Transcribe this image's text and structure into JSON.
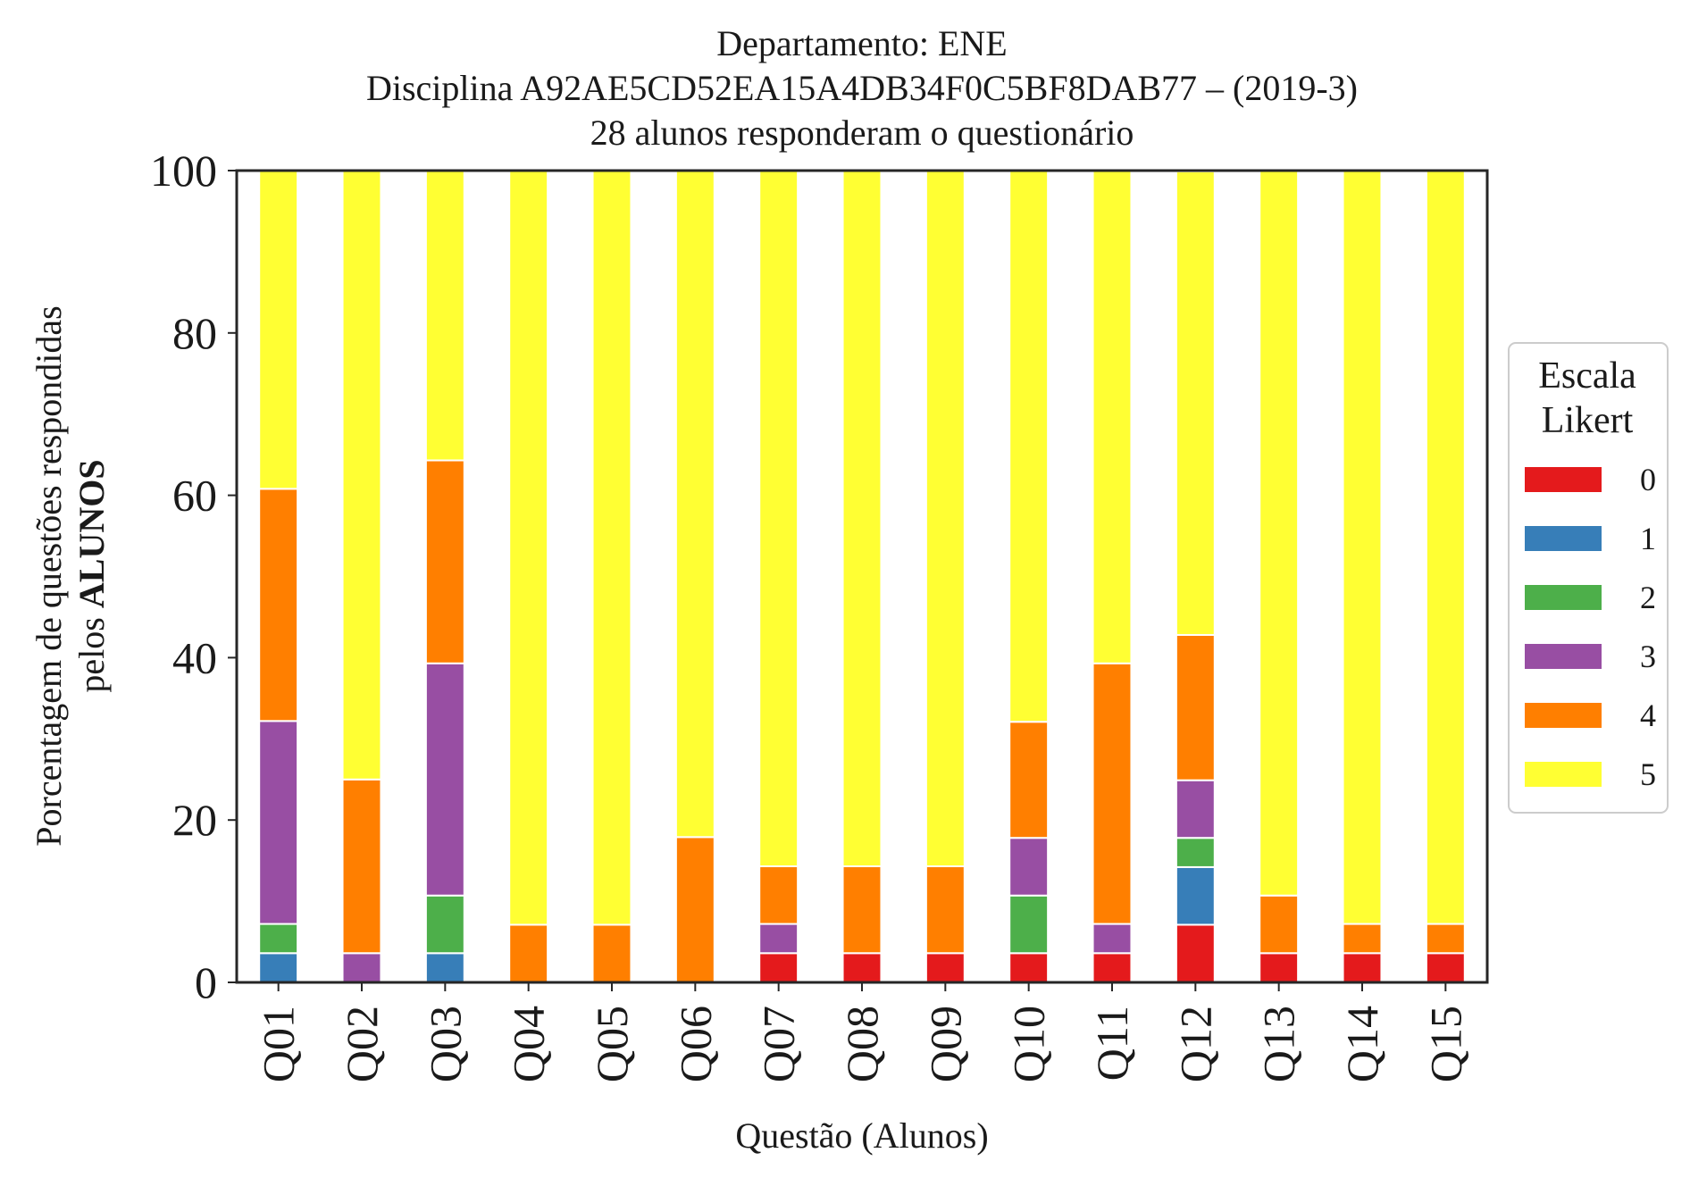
{
  "chart_data": {
    "type": "bar",
    "stacked": true,
    "title_lines": [
      "Departamento: ENE",
      "Disciplina A92AE5CD52EA15A4DB34F0C5BF8DAB77 – (2019-3)",
      "28 alunos responderam o questionário"
    ],
    "xlabel": "Questão (Alunos)",
    "ylabel_line1": "Porcentagem de questões respondidas",
    "ylabel_line2_prefix": "pelos ",
    "ylabel_line2_bold": "ALUNOS",
    "ylim": [
      0,
      100
    ],
    "yticks": [
      0,
      20,
      40,
      60,
      80,
      100
    ],
    "grid": false,
    "categories": [
      "Q01",
      "Q02",
      "Q03",
      "Q04",
      "Q05",
      "Q06",
      "Q07",
      "Q08",
      "Q09",
      "Q10",
      "Q11",
      "Q12",
      "Q13",
      "Q14",
      "Q15"
    ],
    "legend": {
      "title_lines": [
        "Escala",
        "Likert"
      ],
      "placement": "right"
    },
    "series": [
      {
        "name": "0",
        "color": "#e41a1c",
        "values": [
          0,
          0,
          0,
          0,
          0,
          0,
          3.6,
          3.6,
          3.6,
          3.6,
          3.6,
          7.1,
          3.6,
          3.6,
          3.6
        ]
      },
      {
        "name": "1",
        "color": "#377eb8",
        "values": [
          3.6,
          0,
          3.6,
          0,
          0,
          0,
          0,
          0,
          0,
          0,
          0,
          7.1,
          0,
          0,
          0
        ]
      },
      {
        "name": "2",
        "color": "#4daf4a",
        "values": [
          3.6,
          0,
          7.1,
          0,
          0,
          0,
          0,
          0,
          0,
          7.1,
          0,
          3.6,
          0,
          0,
          0
        ]
      },
      {
        "name": "3",
        "color": "#984ea3",
        "values": [
          25.0,
          3.6,
          28.6,
          0,
          0,
          0,
          3.6,
          0,
          0,
          7.1,
          3.6,
          7.1,
          0,
          0,
          0
        ]
      },
      {
        "name": "4",
        "color": "#ff7f00",
        "values": [
          28.6,
          21.4,
          25.0,
          7.1,
          7.1,
          17.9,
          7.1,
          10.7,
          10.7,
          14.3,
          32.1,
          17.9,
          7.1,
          3.6,
          3.6
        ]
      },
      {
        "name": "5",
        "color": "#ffff33",
        "values": [
          39.3,
          75.0,
          35.7,
          92.9,
          92.9,
          82.1,
          85.7,
          85.7,
          85.7,
          67.9,
          60.7,
          57.1,
          89.3,
          92.9,
          92.9
        ]
      }
    ]
  }
}
